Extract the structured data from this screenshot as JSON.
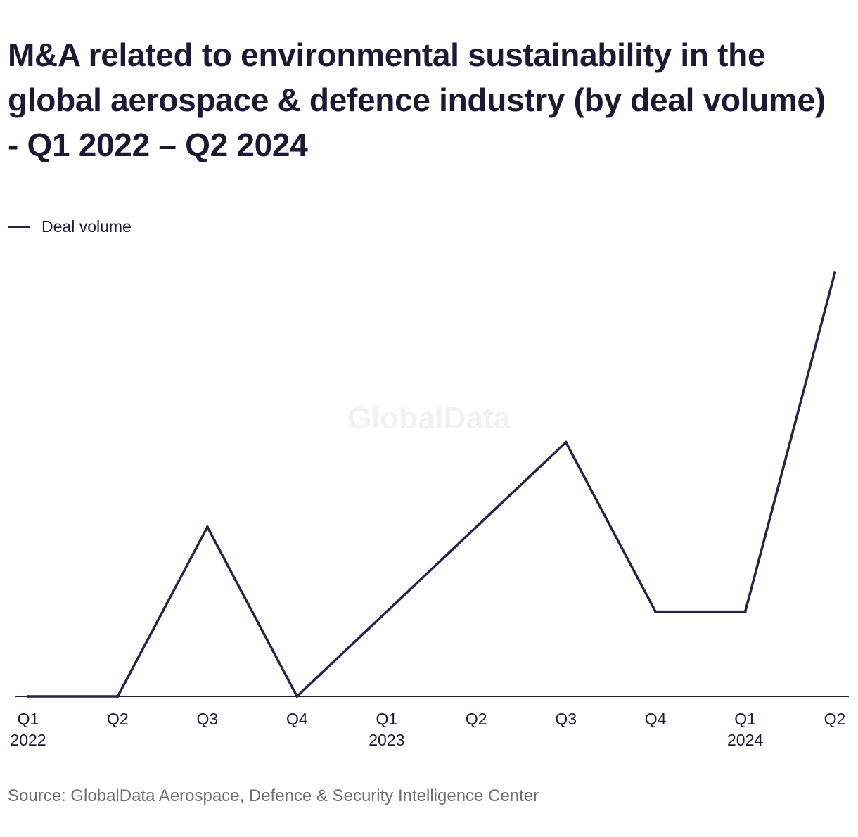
{
  "header": {
    "title": "M&A related to environmental sustainability in the global aerospace & defence industry (by deal volume) - Q1 2022 – Q2 2024"
  },
  "watermark": {
    "text": "GlobalData"
  },
  "source": {
    "text": "Source: GlobalData Aerospace, Defence & Security Intelligence Center"
  },
  "chart_data": {
    "type": "line",
    "title": "M&A related to environmental sustainability in the global aerospace & defence industry (by deal volume) - Q1 2022 – Q2 2024",
    "xlabel": "",
    "ylabel": "",
    "grid": false,
    "legend_position": "top-left",
    "ylim": [
      0,
      5
    ],
    "categories": [
      "Q1 2022",
      "Q2 2022",
      "Q3 2022",
      "Q4 2022",
      "Q1 2023",
      "Q2 2023",
      "Q3 2023",
      "Q4 2023",
      "Q1 2024",
      "Q2 2024"
    ],
    "tick_labels": [
      {
        "quarter": "Q1",
        "year": "2022"
      },
      {
        "quarter": "Q2",
        "year": ""
      },
      {
        "quarter": "Q3",
        "year": ""
      },
      {
        "quarter": "Q4",
        "year": ""
      },
      {
        "quarter": "Q1",
        "year": "2023"
      },
      {
        "quarter": "Q2",
        "year": ""
      },
      {
        "quarter": "Q3",
        "year": ""
      },
      {
        "quarter": "Q4",
        "year": ""
      },
      {
        "quarter": "Q1",
        "year": "2024"
      },
      {
        "quarter": "Q2",
        "year": ""
      }
    ],
    "series": [
      {
        "name": "Deal volume",
        "color": "#2c2248",
        "values": [
          0,
          0,
          2,
          0,
          1,
          2,
          3,
          1,
          1,
          5
        ]
      }
    ]
  }
}
